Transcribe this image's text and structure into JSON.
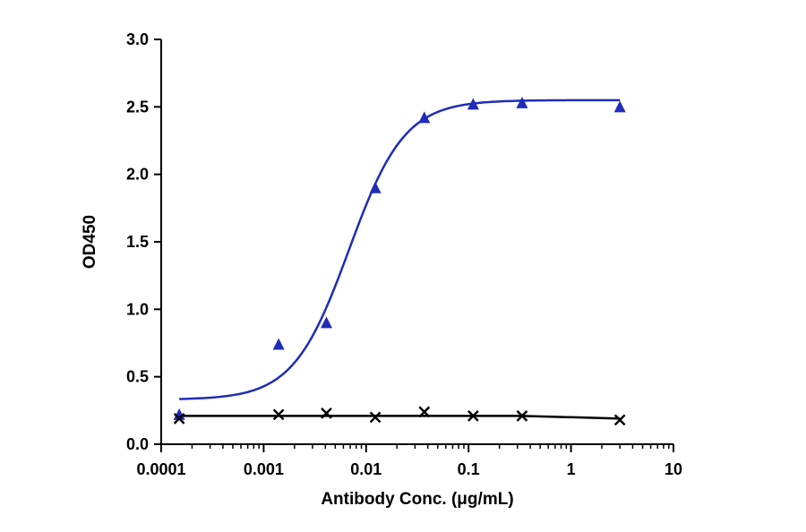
{
  "chart_data": {
    "type": "scatter",
    "title": "",
    "xlabel": "Antibody Conc. (μg/mL)",
    "ylabel": "OD450",
    "xscale": "log",
    "xlim": [
      0.0001,
      10
    ],
    "ylim": [
      0,
      3.0
    ],
    "x_tick_labels": [
      "0.0001",
      "0.001",
      "0.01",
      "0.1",
      "1",
      "10"
    ],
    "x_tick_values": [
      0.0001,
      0.001,
      0.01,
      0.1,
      1,
      10
    ],
    "y_tick_labels": [
      "0.0",
      "0.5",
      "1.0",
      "1.5",
      "2.0",
      "2.5",
      "3.0"
    ],
    "y_tick_values": [
      0,
      0.5,
      1.0,
      1.5,
      2.0,
      2.5,
      3.0
    ],
    "grid": false,
    "legend": "none",
    "series": [
      {
        "marker": "triangle",
        "color": "#1f2db8",
        "x": [
          0.00015,
          0.0014,
          0.0041,
          0.0123,
          0.037,
          0.111,
          0.333,
          3.0
        ],
        "y": [
          0.22,
          0.74,
          0.9,
          1.9,
          2.42,
          2.52,
          2.53,
          2.5
        ],
        "fit": {
          "model": "4PL",
          "bottom": 0.33,
          "top": 2.55,
          "ec50": 0.0068,
          "hill": 1.6
        }
      },
      {
        "marker": "x",
        "color": "#000000",
        "x": [
          0.00015,
          0.0014,
          0.0041,
          0.0123,
          0.037,
          0.111,
          0.333,
          3.0
        ],
        "y": [
          0.19,
          0.22,
          0.23,
          0.2,
          0.24,
          0.21,
          0.21,
          0.18
        ],
        "fit": {
          "model": "line",
          "points_y": [
            0.21,
            0.21,
            0.21,
            0.21,
            0.21,
            0.21,
            0.21,
            0.19
          ]
        }
      }
    ]
  }
}
